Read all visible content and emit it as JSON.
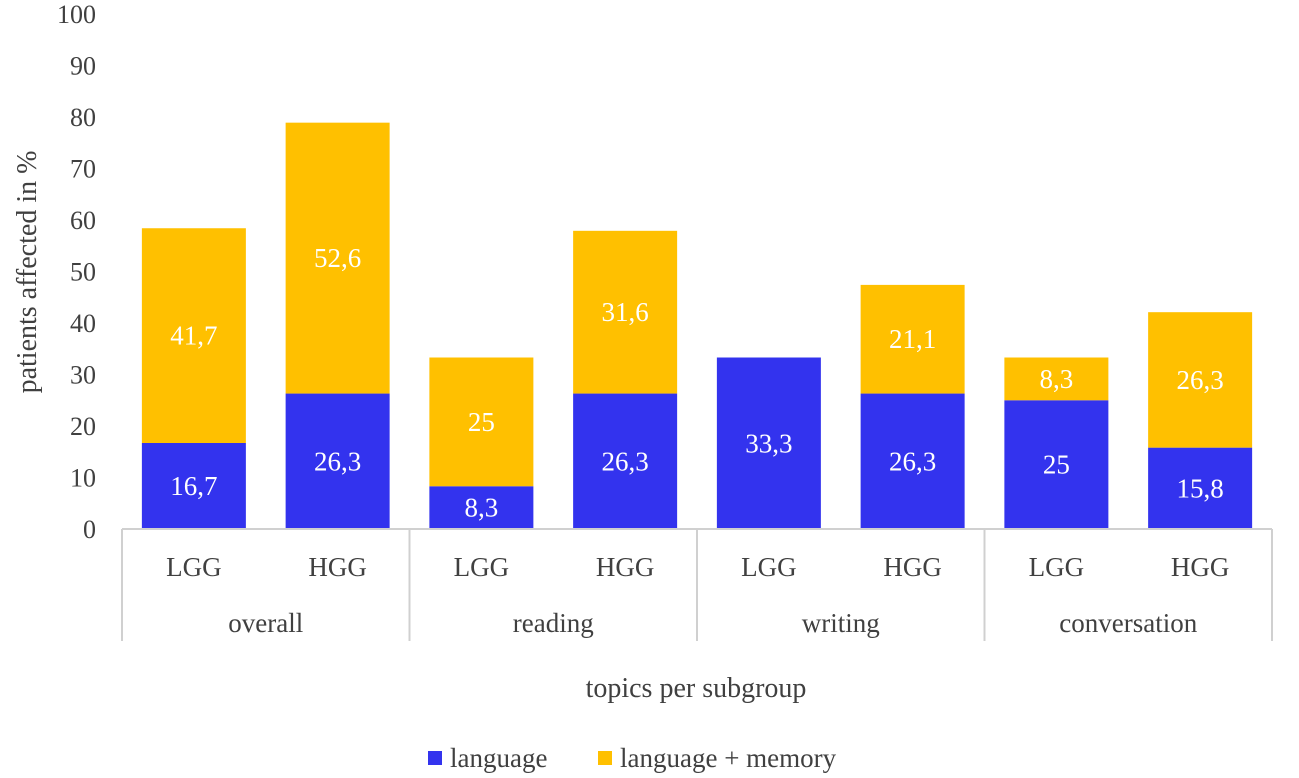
{
  "chart_data": {
    "type": "bar",
    "stacked": true,
    "groups": [
      "overall",
      "reading",
      "writing",
      "conversation"
    ],
    "subcategories": [
      "LGG",
      "HGG"
    ],
    "categories": [
      "LGG",
      "HGG",
      "LGG",
      "HGG",
      "LGG",
      "HGG",
      "LGG",
      "HGG"
    ],
    "series": [
      {
        "name": "language",
        "color": "#3333ee",
        "values": [
          16.7,
          26.3,
          8.3,
          26.3,
          33.3,
          26.3,
          25,
          15.8
        ],
        "labels": [
          "16,7",
          "26,3",
          "8,3",
          "26,3",
          "33,3",
          "26,3",
          "25",
          "15,8"
        ]
      },
      {
        "name": "language + memory",
        "color": "#ffc000",
        "values": [
          41.7,
          52.6,
          25,
          31.6,
          0,
          21.1,
          8.3,
          26.3
        ],
        "labels": [
          "41,7",
          "52,6",
          "25",
          "31,6",
          "",
          "21,1",
          "8,3",
          "26,3"
        ]
      }
    ],
    "title": "",
    "xlabel": "topics per subgroup",
    "ylabel": "patients affected in %",
    "ylim": [
      0,
      100
    ],
    "yticks": [
      0,
      10,
      20,
      30,
      40,
      50,
      60,
      70,
      80,
      90,
      100
    ],
    "grid": false,
    "legend_position": "bottom"
  }
}
